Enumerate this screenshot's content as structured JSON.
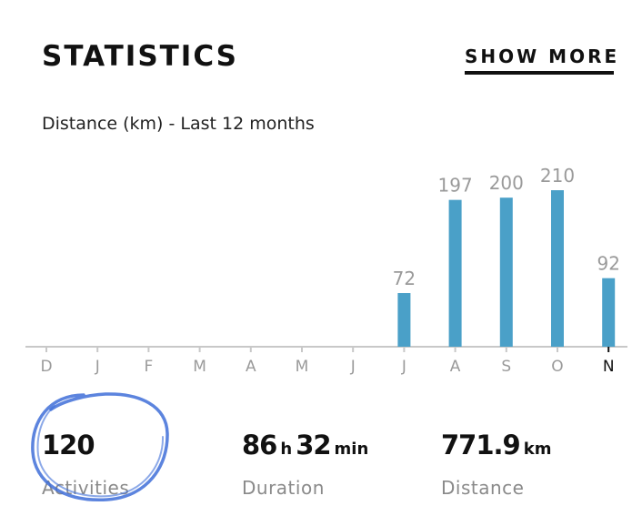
{
  "header": {
    "title": "STATISTICS",
    "show_more_label": "SHOW MORE"
  },
  "chart_data": {
    "type": "bar",
    "title": "Distance (km) - Last 12 months",
    "categories": [
      "D",
      "J",
      "F",
      "M",
      "A",
      "M",
      "J",
      "J",
      "A",
      "S",
      "O",
      "N"
    ],
    "values": [
      0,
      0,
      0,
      0,
      0,
      0,
      0,
      72,
      197,
      200,
      210,
      92
    ],
    "value_labels": [
      "",
      "",
      "",
      "",
      "",
      "",
      "",
      "72",
      "197",
      "200",
      "210",
      "92"
    ],
    "selected_category_index": 11,
    "ymax": 210,
    "xlabel": "",
    "ylabel": "",
    "grid": false,
    "colors": {
      "bar": "#4aa0c8",
      "axis": "#c8c8c8",
      "label": "#9a9a9a",
      "selected_label": "#111111"
    }
  },
  "stats": [
    {
      "value": "120",
      "label": "Activities"
    },
    {
      "hours": "86",
      "hours_unit": "h",
      "minutes": "32",
      "minutes_unit": "min",
      "label": "Duration"
    },
    {
      "value": "771.9",
      "unit": "km",
      "label": "Distance"
    }
  ],
  "annotation": {
    "color": "#3f6fd8"
  }
}
